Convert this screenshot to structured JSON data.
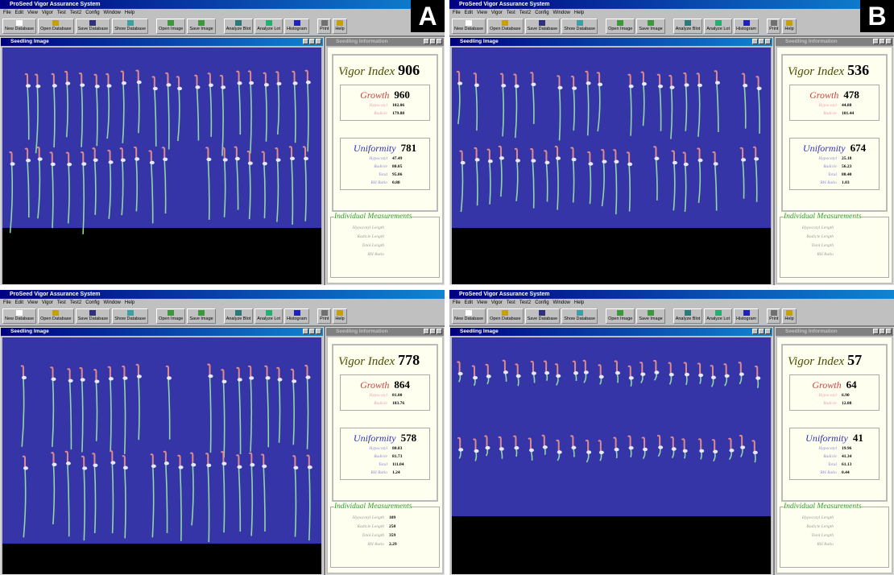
{
  "app": {
    "title": "ProSeed Vigor Assurance System",
    "menu": [
      "File",
      "Edit",
      "View",
      "Vigor",
      "Test",
      "Test2",
      "Config",
      "Window",
      "Help"
    ],
    "toolbar": [
      "New Database",
      "Open Database",
      "Save Database",
      "Show Database",
      "Open Image",
      "Save Image",
      "Analyze Blot",
      "Analyze Lot",
      "Histogram",
      "Print",
      "Help"
    ],
    "image_window": "Seedling Image",
    "info_window": "Seedling Information",
    "labels": {
      "vigor_index": "Vigor Index",
      "growth": "Growth",
      "uniformity": "Uniformity",
      "hypocotyl": "Hypocotyl",
      "radicle": "Radicle",
      "total": "Total",
      "rh_ratio": "RH Ratio",
      "individual": "Individual Measurements",
      "hypocotyl_length": "Hypocotyl Length",
      "radicle_length": "Radicle Length",
      "total_length": "Total Length"
    }
  },
  "panels": [
    {
      "label": "A",
      "vigor_index": "906",
      "growth": {
        "value": "960",
        "hypocotyl": "102.06",
        "radicle": "179.88"
      },
      "uniformity": {
        "value": "781",
        "hypocotyl": "47.49",
        "radicle": "80.05",
        "total": "95.06",
        "rh_ratio": "0.88"
      }
    },
    {
      "label": "B",
      "vigor_index": "536",
      "growth": {
        "value": "478",
        "hypocotyl": "44.88",
        "radicle": "101.44"
      },
      "uniformity": {
        "value": "674",
        "hypocotyl": "25.18",
        "radicle": "56.23",
        "total": "80.40",
        "rh_ratio": "1.03"
      }
    },
    {
      "vigor_index": "778",
      "growth": {
        "value": "864",
        "hypocotyl": "81.00",
        "radicle": "183.76"
      },
      "uniformity": {
        "value": "578",
        "hypocotyl": "80.83",
        "radicle": "81.73",
        "total": "111.04",
        "rh_ratio": "1.24"
      },
      "individual": {
        "hypocotyl_length": "109",
        "radicle_length": "250",
        "total_length": "359",
        "rh_ratio": "2.29"
      }
    },
    {
      "vigor_index": "57",
      "growth": {
        "value": "64",
        "hypocotyl": "6.90",
        "radicle": "12.08"
      },
      "uniformity": {
        "value": "41",
        "hypocotyl": "19.96",
        "radicle": "41.34",
        "total": "61.13",
        "rh_ratio": "0.44"
      }
    }
  ]
}
